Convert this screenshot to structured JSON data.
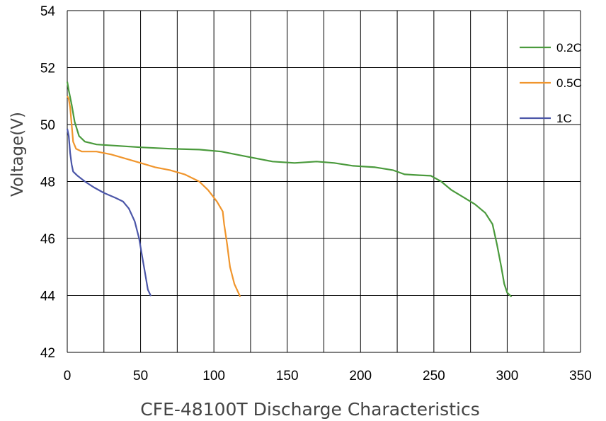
{
  "chart_data": {
    "type": "line",
    "title": "",
    "xlabel": "CFE-48100T Discharge Characteristics",
    "ylabel": "Voltage(V)",
    "xlim": [
      0,
      350
    ],
    "ylim": [
      42,
      54
    ],
    "x_ticks": [
      0,
      50,
      100,
      150,
      200,
      250,
      300,
      350
    ],
    "y_ticks": [
      42,
      44,
      46,
      48,
      50,
      52,
      54
    ],
    "grid": true,
    "legend_position": "top-right",
    "series": [
      {
        "name": "0.2C",
        "color": "#4a9a3c",
        "points": [
          [
            0,
            51.5
          ],
          [
            1,
            51.2
          ],
          [
            3,
            50.7
          ],
          [
            5,
            50.1
          ],
          [
            8,
            49.6
          ],
          [
            12,
            49.4
          ],
          [
            20,
            49.3
          ],
          [
            35,
            49.25
          ],
          [
            50,
            49.2
          ],
          [
            70,
            49.15
          ],
          [
            90,
            49.12
          ],
          [
            105,
            49.05
          ],
          [
            120,
            48.9
          ],
          [
            140,
            48.7
          ],
          [
            155,
            48.65
          ],
          [
            170,
            48.7
          ],
          [
            182,
            48.65
          ],
          [
            195,
            48.55
          ],
          [
            210,
            48.5
          ],
          [
            222,
            48.4
          ],
          [
            230,
            48.25
          ],
          [
            240,
            48.22
          ],
          [
            248,
            48.2
          ],
          [
            255,
            48.0
          ],
          [
            262,
            47.7
          ],
          [
            270,
            47.45
          ],
          [
            278,
            47.2
          ],
          [
            285,
            46.9
          ],
          [
            290,
            46.5
          ],
          [
            293,
            45.8
          ],
          [
            296,
            45.0
          ],
          [
            298,
            44.4
          ],
          [
            300,
            44.1
          ],
          [
            303,
            43.95
          ]
        ]
      },
      {
        "name": "0.5C",
        "color": "#f0952c",
        "points": [
          [
            0,
            51.0
          ],
          [
            1,
            50.9
          ],
          [
            2,
            50.6
          ],
          [
            3,
            50.0
          ],
          [
            4,
            49.4
          ],
          [
            6,
            49.15
          ],
          [
            10,
            49.05
          ],
          [
            20,
            49.05
          ],
          [
            30,
            48.95
          ],
          [
            40,
            48.8
          ],
          [
            50,
            48.65
          ],
          [
            60,
            48.5
          ],
          [
            70,
            48.4
          ],
          [
            80,
            48.25
          ],
          [
            90,
            48.0
          ],
          [
            96,
            47.7
          ],
          [
            102,
            47.3
          ],
          [
            106,
            46.95
          ],
          [
            107,
            46.5
          ],
          [
            109,
            45.8
          ],
          [
            111,
            45.0
          ],
          [
            114,
            44.4
          ],
          [
            118,
            43.95
          ]
        ]
      },
      {
        "name": "1C",
        "color": "#4b56a8",
        "points": [
          [
            0,
            49.85
          ],
          [
            1,
            49.6
          ],
          [
            2,
            49.0
          ],
          [
            3,
            48.6
          ],
          [
            4,
            48.35
          ],
          [
            7,
            48.2
          ],
          [
            12,
            48.0
          ],
          [
            18,
            47.8
          ],
          [
            25,
            47.6
          ],
          [
            33,
            47.42
          ],
          [
            38,
            47.3
          ],
          [
            42,
            47.05
          ],
          [
            46,
            46.6
          ],
          [
            49,
            46.0
          ],
          [
            51,
            45.4
          ],
          [
            53,
            44.8
          ],
          [
            55,
            44.2
          ],
          [
            57,
            43.98
          ]
        ]
      }
    ]
  }
}
